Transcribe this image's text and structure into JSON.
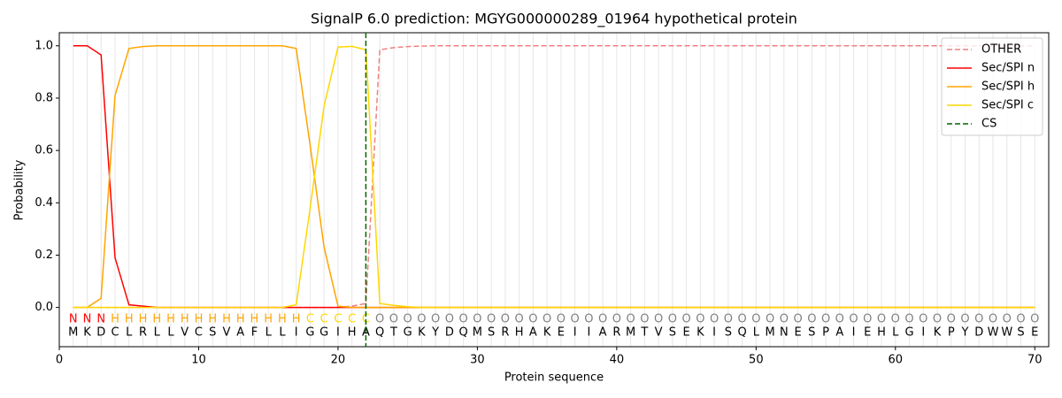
{
  "chart_data": {
    "type": "line",
    "title": "SignalP 6.0 prediction: MGYG000000289_01964 hypothetical protein",
    "xlabel": "Protein sequence",
    "ylabel": "Probability",
    "x": [
      1,
      2,
      3,
      4,
      5,
      6,
      7,
      8,
      9,
      10,
      11,
      12,
      13,
      14,
      15,
      16,
      17,
      18,
      19,
      20,
      21,
      22,
      23,
      24,
      25,
      26,
      27,
      28,
      29,
      30,
      31,
      32,
      33,
      34,
      35,
      36,
      37,
      38,
      39,
      40,
      41,
      42,
      43,
      44,
      45,
      46,
      47,
      48,
      49,
      50,
      51,
      52,
      53,
      54,
      55,
      56,
      57,
      58,
      59,
      60,
      61,
      62,
      63,
      64,
      65,
      66,
      67,
      68,
      69,
      70
    ],
    "sequence": [
      "M",
      "K",
      "D",
      "C",
      "L",
      "R",
      "L",
      "L",
      "V",
      "C",
      "S",
      "V",
      "A",
      "F",
      "L",
      "L",
      "I",
      "G",
      "G",
      "I",
      "H",
      "A",
      "Q",
      "T",
      "G",
      "K",
      "Y",
      "D",
      "Q",
      "M",
      "S",
      "R",
      "H",
      "A",
      "K",
      "E",
      "I",
      "I",
      "A",
      "R",
      "M",
      "T",
      "V",
      "S",
      "E",
      "K",
      "I",
      "S",
      "Q",
      "L",
      "M",
      "N",
      "E",
      "S",
      "P",
      "A",
      "I",
      "E",
      "H",
      "L",
      "G",
      "I",
      "K",
      "P",
      "Y",
      "D",
      "W",
      "W",
      "S",
      "E"
    ],
    "labels": [
      "N",
      "N",
      "N",
      "H",
      "H",
      "H",
      "H",
      "H",
      "H",
      "H",
      "H",
      "H",
      "H",
      "H",
      "H",
      "H",
      "H",
      "C",
      "C",
      "C",
      "C",
      "C",
      "O",
      "O",
      "O",
      "O",
      "O",
      "O",
      "O",
      "O",
      "O",
      "O",
      "O",
      "O",
      "O",
      "O",
      "O",
      "O",
      "O",
      "O",
      "O",
      "O",
      "O",
      "O",
      "O",
      "O",
      "O",
      "O",
      "O",
      "O",
      "O",
      "O",
      "O",
      "O",
      "O",
      "O",
      "O",
      "O",
      "O",
      "O",
      "O",
      "O",
      "O",
      "O",
      "O",
      "O",
      "O",
      "O",
      "O",
      "O"
    ],
    "label_colors": {
      "N": "#ff0000",
      "H": "#ffa500",
      "C": "#ffd700",
      "O": "#808080"
    },
    "series": [
      {
        "name": "OTHER",
        "color": "#f08080",
        "dashed": true,
        "values": [
          0,
          0,
          0,
          0,
          0,
          0,
          0,
          0,
          0,
          0,
          0,
          0,
          0,
          0,
          0,
          0,
          0,
          0,
          0,
          0,
          0.005,
          0.015,
          0.985,
          0.993,
          0.997,
          0.999,
          1,
          1,
          1,
          1,
          1,
          1,
          1,
          1,
          1,
          1,
          1,
          1,
          1,
          1,
          1,
          1,
          1,
          1,
          1,
          1,
          1,
          1,
          1,
          1,
          1,
          1,
          1,
          1,
          1,
          1,
          1,
          1,
          1,
          1,
          1,
          1,
          1,
          1,
          1,
          1,
          1,
          1,
          1,
          1
        ]
      },
      {
        "name": "Sec/SPI n",
        "color": "#ff0000",
        "dashed": false,
        "values": [
          1,
          1,
          0.965,
          0.19,
          0.01,
          0.005,
          0,
          0,
          0,
          0,
          0,
          0,
          0,
          0,
          0,
          0,
          0,
          0,
          0,
          0,
          0,
          0,
          0,
          0,
          0,
          0,
          0,
          0,
          0,
          0,
          0,
          0,
          0,
          0,
          0,
          0,
          0,
          0,
          0,
          0,
          0,
          0,
          0,
          0,
          0,
          0,
          0,
          0,
          0,
          0,
          0,
          0,
          0,
          0,
          0,
          0,
          0,
          0,
          0,
          0,
          0,
          0,
          0,
          0,
          0,
          0,
          0,
          0,
          0,
          0
        ]
      },
      {
        "name": "Sec/SPI h",
        "color": "#ffa500",
        "dashed": false,
        "values": [
          0,
          0,
          0.035,
          0.81,
          0.99,
          0.997,
          1,
          1,
          1,
          1,
          1,
          1,
          1,
          1,
          1,
          1,
          0.99,
          0.62,
          0.23,
          0.005,
          0,
          0,
          0,
          0,
          0,
          0,
          0,
          0,
          0,
          0,
          0,
          0,
          0,
          0,
          0,
          0,
          0,
          0,
          0,
          0,
          0,
          0,
          0,
          0,
          0,
          0,
          0,
          0,
          0,
          0,
          0,
          0,
          0,
          0,
          0,
          0,
          0,
          0,
          0,
          0,
          0,
          0,
          0,
          0,
          0,
          0,
          0,
          0,
          0,
          0
        ]
      },
      {
        "name": "Sec/SPI c",
        "color": "#ffd700",
        "dashed": false,
        "values": [
          0,
          0,
          0,
          0,
          0,
          0,
          0,
          0,
          0,
          0,
          0,
          0,
          0,
          0,
          0,
          0,
          0.01,
          0.38,
          0.77,
          0.995,
          0.998,
          0.985,
          0.015,
          0.008,
          0.003,
          0,
          0,
          0,
          0,
          0,
          0,
          0,
          0,
          0,
          0,
          0,
          0,
          0,
          0,
          0,
          0,
          0,
          0,
          0,
          0,
          0,
          0,
          0,
          0,
          0,
          0,
          0,
          0,
          0,
          0,
          0,
          0,
          0,
          0,
          0,
          0,
          0,
          0,
          0,
          0,
          0,
          0,
          0,
          0,
          0
        ]
      }
    ],
    "cleavage_site": {
      "name": "CS",
      "x": 22,
      "color": "#006400"
    },
    "xlim": [
      0,
      71
    ],
    "ylim": [
      -0.15,
      1.05
    ],
    "xticks": [
      0,
      10,
      20,
      30,
      40,
      50,
      60,
      70
    ],
    "yticks": [
      {
        "value": 0,
        "label": "0.0"
      },
      {
        "value": 0.2,
        "label": "0.2"
      },
      {
        "value": 0.4,
        "label": "0.4"
      },
      {
        "value": 0.6,
        "label": "0.6"
      },
      {
        "value": 0.8,
        "label": "0.8"
      },
      {
        "value": 1,
        "label": "1.0"
      }
    ],
    "grid": true,
    "legend": "upper right"
  }
}
